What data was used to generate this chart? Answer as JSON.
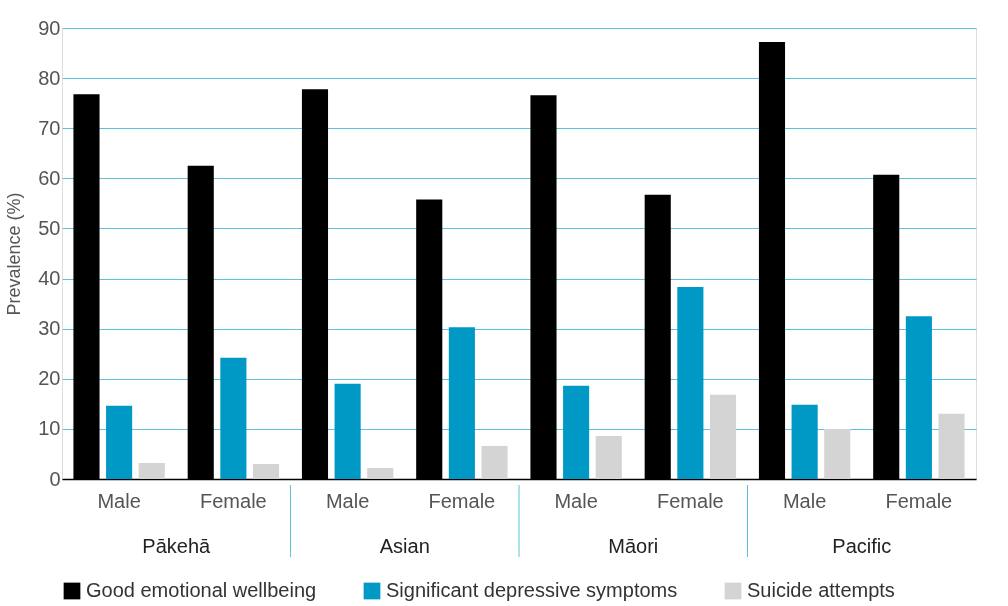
{
  "chart_data": {
    "type": "bar",
    "ylabel": "Prevalence (%)",
    "categories": [
      "Male",
      "Female",
      "Male",
      "Female",
      "Male",
      "Female",
      "Male",
      "Female"
    ],
    "annotations": [
      "Pākehā",
      "Asian",
      "Māori",
      "Pacific"
    ],
    "series": [
      {
        "name": "Good emotional wellbeing",
        "color": "#000000",
        "values": [
          76.8,
          62.5,
          77.8,
          55.8,
          76.6,
          56.7,
          87.2,
          60.7
        ]
      },
      {
        "name": "Significant depressive symptoms",
        "color": "#0099c6",
        "values": [
          14.6,
          24.2,
          19.0,
          30.3,
          18.6,
          38.3,
          14.8,
          32.5
        ]
      },
      {
        "name": "Suicide attempts",
        "color": "#d4d4d4",
        "values": [
          3.2,
          3.0,
          2.2,
          6.6,
          8.6,
          16.8,
          10.0,
          13.0
        ]
      }
    ],
    "ylim": [
      0,
      90
    ],
    "yticks": [
      0,
      10,
      20,
      30,
      40,
      50,
      60,
      70,
      80,
      90
    ],
    "grid": "y",
    "legend": "bottom"
  }
}
